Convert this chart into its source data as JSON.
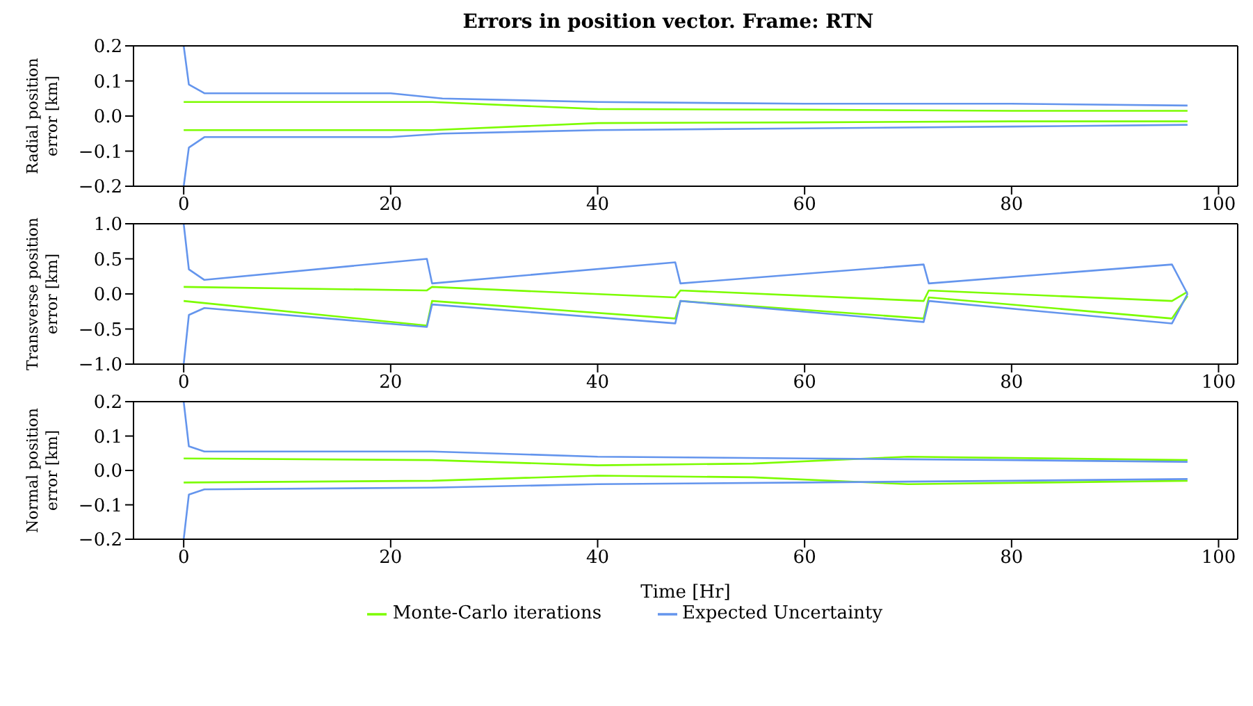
{
  "chart_data": [
    {
      "type": "line",
      "title": "Errors in position vector. Frame: RTN",
      "ylabel": "Radial position\nerror [km]",
      "xlim": [
        -4.85,
        101.85
      ],
      "xticks": [
        0,
        20,
        40,
        60,
        80,
        100
      ],
      "ylim": [
        -0.2,
        0.2
      ],
      "yticks": [
        -0.2,
        -0.1,
        {
          "value": 0,
          "label": "0.0"
        },
        0.1,
        0.2
      ],
      "grid": false,
      "legend": false,
      "series": [
        {
          "color": "#7cfc00",
          "x": [
            0,
            24,
            40,
            60,
            80,
            97
          ],
          "values": [
            0.04,
            0.04,
            0.02,
            0.018,
            0.015,
            0.015
          ]
        },
        {
          "color": "#7cfc00",
          "x": [
            0,
            24,
            40,
            60,
            80,
            97
          ],
          "values": [
            -0.04,
            -0.04,
            -0.02,
            -0.018,
            -0.015,
            -0.015
          ]
        },
        {
          "color": "#6495ed",
          "x": [
            0,
            0.5,
            2,
            20,
            25,
            40,
            60,
            80,
            97
          ],
          "values": [
            0.2,
            0.09,
            0.065,
            0.065,
            0.05,
            0.04,
            0.035,
            0.035,
            0.03
          ]
        },
        {
          "color": "#6495ed",
          "x": [
            0,
            0.5,
            2,
            20,
            25,
            40,
            60,
            80,
            97
          ],
          "values": [
            -0.2,
            -0.09,
            -0.06,
            -0.06,
            -0.05,
            -0.04,
            -0.035,
            -0.03,
            -0.025
          ]
        }
      ]
    },
    {
      "type": "line",
      "ylabel": "Transverse position\nerror [km]",
      "xlim": [
        -4.85,
        101.85
      ],
      "xticks": [
        0,
        20,
        40,
        60,
        80,
        100
      ],
      "ylim": [
        -1.0,
        1.0
      ],
      "yticks": [
        {
          "value": -1,
          "label": "−1.0"
        },
        -0.5,
        {
          "value": 0,
          "label": "0.0"
        },
        0.5,
        {
          "value": 1,
          "label": "1.0"
        }
      ],
      "grid": false,
      "legend": false,
      "series": [
        {
          "color": "#7cfc00",
          "x": [
            0,
            23.5,
            24,
            47.5,
            48,
            71.5,
            72,
            95.5,
            97
          ],
          "values": [
            0.1,
            0.05,
            0.1,
            -0.05,
            0.05,
            -0.1,
            0.05,
            -0.1,
            0.03
          ]
        },
        {
          "color": "#7cfc00",
          "x": [
            0,
            23.5,
            24,
            47.5,
            48,
            71.5,
            72,
            95.5,
            97
          ],
          "values": [
            -0.1,
            -0.45,
            -0.1,
            -0.35,
            -0.1,
            -0.35,
            -0.05,
            -0.35,
            -0.03
          ]
        },
        {
          "color": "#6495ed",
          "x": [
            0,
            0.5,
            2,
            23.5,
            24,
            47.5,
            48,
            71.5,
            72,
            95.5,
            97
          ],
          "values": [
            1.0,
            0.35,
            0.2,
            0.5,
            0.15,
            0.45,
            0.15,
            0.42,
            0.15,
            0.42,
            0.0
          ]
        },
        {
          "color": "#6495ed",
          "x": [
            0,
            0.5,
            2,
            23.5,
            24,
            47.5,
            48,
            71.5,
            72,
            95.5,
            97
          ],
          "values": [
            -1.0,
            -0.3,
            -0.2,
            -0.47,
            -0.15,
            -0.42,
            -0.1,
            -0.4,
            -0.1,
            -0.42,
            0.0
          ]
        }
      ]
    },
    {
      "type": "line",
      "ylabel": "Normal position\nerror [km]",
      "xlabel": "Time [Hr]",
      "xlim": [
        -4.85,
        101.85
      ],
      "xticks": [
        0,
        20,
        40,
        60,
        80,
        100
      ],
      "ylim": [
        -0.2,
        0.2
      ],
      "yticks": [
        -0.2,
        -0.1,
        {
          "value": 0,
          "label": "0.0"
        },
        0.1,
        0.2
      ],
      "grid": false,
      "legend": "bottom",
      "series": [
        {
          "name": "Monte-Carlo iterations",
          "color": "#7cfc00",
          "x": [
            0,
            24,
            40,
            55,
            70,
            97
          ],
          "values": [
            0.035,
            0.03,
            0.015,
            0.02,
            0.04,
            0.03
          ]
        },
        {
          "color": "#7cfc00",
          "x": [
            0,
            24,
            40,
            55,
            70,
            97
          ],
          "values": [
            -0.035,
            -0.03,
            -0.015,
            -0.02,
            -0.04,
            -0.03
          ]
        },
        {
          "name": "Expected Uncertainty",
          "color": "#6495ed",
          "x": [
            0,
            0.5,
            2,
            24,
            40,
            60,
            80,
            97
          ],
          "values": [
            0.2,
            0.07,
            0.055,
            0.055,
            0.04,
            0.035,
            0.03,
            0.025
          ]
        },
        {
          "color": "#6495ed",
          "x": [
            0,
            0.5,
            2,
            24,
            40,
            60,
            80,
            97
          ],
          "values": [
            -0.2,
            -0.07,
            -0.055,
            -0.05,
            -0.04,
            -0.035,
            -0.03,
            -0.025
          ]
        }
      ]
    }
  ]
}
